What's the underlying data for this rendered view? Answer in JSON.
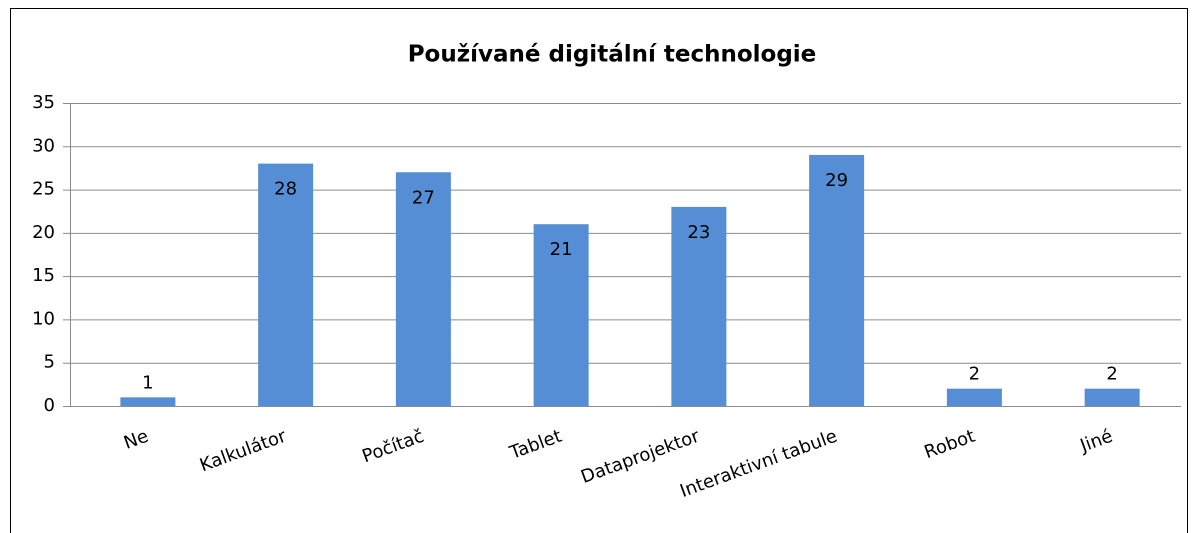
{
  "chart_data": {
    "type": "bar",
    "title": "Používané digitální technologie",
    "categories": [
      "Ne",
      "Kalkulátor",
      "Počítač",
      "Tablet",
      "Dataprojektor",
      "Interaktivní tabule",
      "Robot",
      "Jiné"
    ],
    "values": [
      1,
      28,
      27,
      21,
      23,
      29,
      2,
      2
    ],
    "color": "#558ed5",
    "ylim": [
      0,
      35
    ],
    "yticks": [
      0,
      5,
      10,
      15,
      20,
      25,
      30,
      35
    ],
    "grid": true
  }
}
